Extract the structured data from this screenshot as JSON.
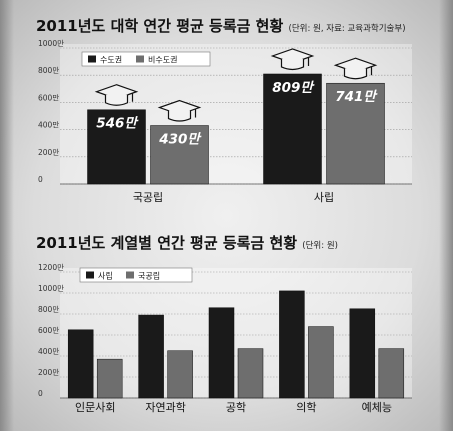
{
  "chart_data": [
    {
      "type": "bar",
      "title": "2011년도 대학 연간 평균 등록금 현황",
      "unit_note": "(단위: 원, 자료: 교육과학기술부)",
      "categories": [
        "국공립",
        "사립"
      ],
      "series": [
        {
          "name": "수도권",
          "values": [
            546,
            809
          ],
          "labels": [
            "546만",
            "809만"
          ],
          "color": "#1a1a1a"
        },
        {
          "name": "비수도권",
          "values": [
            430,
            741
          ],
          "labels": [
            "430만",
            "741만"
          ],
          "color": "#6e6e6e"
        }
      ],
      "ylim": [
        0,
        1000
      ],
      "yticks": [
        0,
        200,
        400,
        600,
        800,
        1000
      ],
      "ytick_labels": [
        "0",
        "200만",
        "400만",
        "600만",
        "800만",
        "1000만"
      ],
      "legend": "top-left",
      "grid": true
    },
    {
      "type": "bar",
      "title": "2011년도 계열별 연간 평균 등록금 현황",
      "unit_note": "(단위: 원)",
      "categories": [
        "인문사회",
        "자연과학",
        "공학",
        "의학",
        "예체능"
      ],
      "series": [
        {
          "name": "사립",
          "values": [
            650,
            790,
            860,
            1020,
            850
          ],
          "color": "#1a1a1a"
        },
        {
          "name": "국공립",
          "values": [
            370,
            450,
            470,
            680,
            470
          ],
          "color": "#6e6e6e"
        }
      ],
      "ylim": [
        0,
        1200
      ],
      "yticks": [
        0,
        200,
        400,
        600,
        800,
        1000,
        1200
      ],
      "ytick_labels": [
        "0",
        "200만",
        "400만",
        "600만",
        "800만",
        "1000만",
        "1200만"
      ],
      "legend": "top-left",
      "grid": true
    }
  ]
}
